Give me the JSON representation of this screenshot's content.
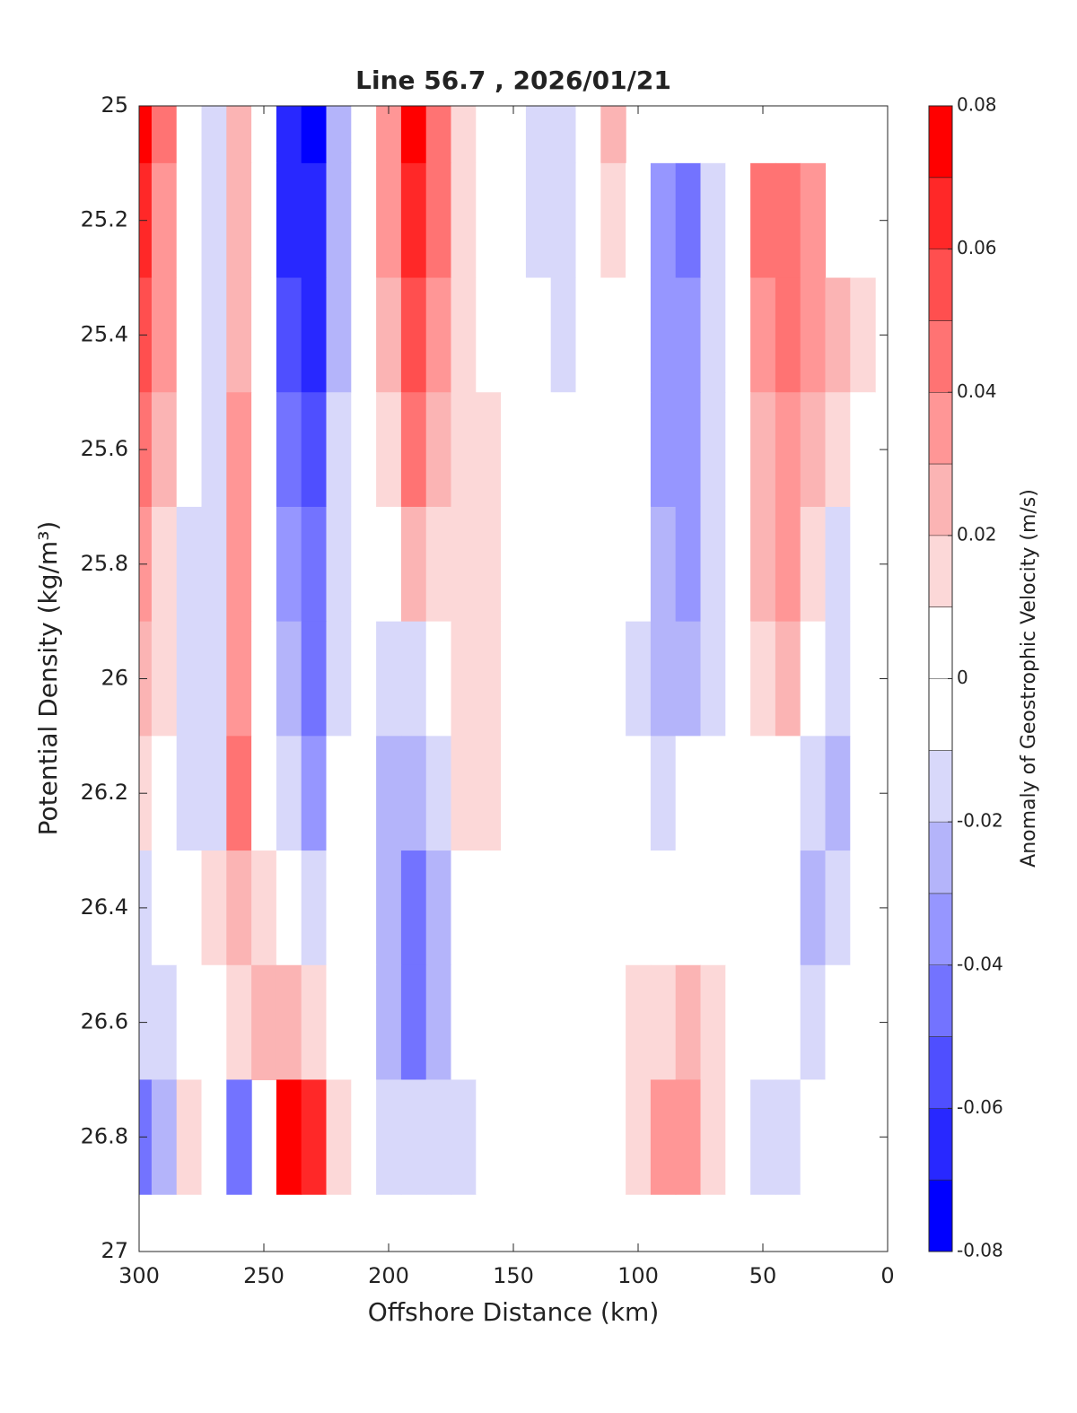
{
  "chart_data": {
    "type": "contourf",
    "title": "Line 56.7 , 2026/01/21",
    "x_label": "Offshore Distance (km)",
    "y_label": "Potential Density (kg/m³)",
    "colorbar_label": "Anomaly of Geostrophic Velocity (m/s)",
    "xlim": [
      300,
      0
    ],
    "xticks": [
      300,
      250,
      200,
      150,
      100,
      50,
      0
    ],
    "ylim": [
      25,
      27
    ],
    "yticks": [
      25,
      25.2,
      25.4,
      25.6,
      25.8,
      26,
      26.2,
      26.4,
      26.6,
      26.8,
      27
    ],
    "y_reversed": true,
    "clim": [
      -0.08,
      0.08
    ],
    "cticks": [
      -0.08,
      -0.06,
      -0.04,
      -0.02,
      0,
      0.02,
      0.04,
      0.06,
      0.08
    ],
    "colormap": [
      "#0000ff",
      "#2828ff",
      "#4f4fff",
      "#7373ff",
      "#9696ff",
      "#b4b4fa",
      "#d8d8fa",
      "#ffffff",
      "#ffffff",
      "#fcd8d8",
      "#fbb4b4",
      "#ff9696",
      "#ff7373",
      "#ff4f4f",
      "#ff2828",
      "#ff0000"
    ],
    "x": [
      300,
      290,
      280,
      270,
      260,
      250,
      240,
      230,
      220,
      210,
      200,
      190,
      180,
      170,
      160,
      150,
      140,
      130,
      120,
      110,
      100,
      90,
      80,
      70,
      60,
      50,
      40,
      30,
      20,
      10
    ],
    "y": [
      25,
      25.2,
      25.4,
      25.6,
      25.8,
      26,
      26.2,
      26.4,
      26.6,
      26.8
    ],
    "z": [
      [
        0.075,
        0.045,
        0,
        -0.015,
        0.025,
        0,
        -0.065,
        -0.075,
        -0.025,
        0,
        0.035,
        0.075,
        0.045,
        0.015,
        0,
        0,
        -0.015,
        -0.015,
        0,
        0.025,
        null,
        null,
        null,
        null,
        null,
        null,
        null,
        null,
        null,
        null
      ],
      [
        0.065,
        0.035,
        0,
        -0.015,
        0.025,
        0,
        -0.065,
        -0.065,
        -0.025,
        0,
        0.035,
        0.065,
        0.045,
        0.015,
        0,
        0,
        -0.015,
        -0.015,
        0,
        0.015,
        0,
        -0.035,
        -0.045,
        -0.015,
        0,
        0.045,
        0.045,
        0.035,
        null,
        null
      ],
      [
        0.055,
        0.035,
        0,
        -0.015,
        0.025,
        0,
        -0.055,
        -0.065,
        -0.025,
        0,
        0.025,
        0.055,
        0.035,
        0.015,
        0,
        0,
        0,
        -0.015,
        0,
        0,
        0,
        -0.035,
        -0.035,
        -0.015,
        0,
        0.035,
        0.045,
        0.035,
        0.025,
        0.015
      ],
      [
        0.045,
        0.025,
        0,
        -0.015,
        0.035,
        0,
        -0.045,
        -0.055,
        -0.015,
        0,
        0.015,
        0.045,
        0.025,
        0.015,
        0.015,
        0,
        0,
        0,
        0,
        0,
        0,
        -0.035,
        -0.035,
        -0.015,
        0,
        0.025,
        0.035,
        0.025,
        0.015,
        0
      ],
      [
        0.035,
        0.015,
        -0.015,
        -0.015,
        0.035,
        0,
        -0.035,
        -0.045,
        -0.015,
        0,
        0,
        0.025,
        0.015,
        0.015,
        0.015,
        0,
        0,
        0,
        0,
        0,
        0,
        -0.025,
        -0.035,
        -0.015,
        0,
        0.025,
        0.035,
        0.015,
        -0.015,
        0
      ],
      [
        0.025,
        0.015,
        -0.015,
        -0.015,
        0.035,
        0,
        -0.025,
        -0.045,
        -0.015,
        0,
        -0.015,
        -0.015,
        0,
        0.015,
        0.015,
        0,
        0,
        0,
        0,
        0,
        -0.015,
        -0.025,
        -0.025,
        -0.015,
        0,
        0.015,
        0.025,
        0,
        -0.015,
        0
      ],
      [
        0.015,
        0,
        -0.015,
        -0.015,
        0.045,
        0,
        -0.015,
        -0.035,
        0,
        0,
        -0.025,
        -0.025,
        -0.015,
        0.015,
        0.015,
        0,
        0,
        0,
        0,
        0,
        0,
        -0.015,
        0,
        0,
        0,
        0,
        0,
        -0.015,
        -0.025,
        0
      ],
      [
        -0.015,
        0,
        0,
        0.015,
        0.025,
        0.015,
        0,
        -0.015,
        0,
        0,
        -0.025,
        -0.045,
        -0.025,
        0,
        0,
        0,
        0,
        0,
        0,
        0,
        0,
        0,
        0,
        0,
        0,
        0,
        0,
        -0.025,
        -0.015,
        0
      ],
      [
        -0.015,
        -0.015,
        0,
        0,
        0.015,
        0.025,
        0.025,
        0.015,
        0,
        0,
        -0.025,
        -0.045,
        -0.025,
        0,
        0,
        0,
        0,
        0,
        0,
        0,
        0.015,
        0.015,
        0.025,
        0.015,
        0,
        0,
        0,
        -0.015,
        0,
        0
      ],
      [
        -0.045,
        -0.025,
        0.015,
        0,
        -0.045,
        null,
        0.075,
        0.065,
        0.015,
        0,
        -0.015,
        -0.015,
        -0.015,
        -0.015,
        0,
        0,
        0,
        0,
        0,
        0,
        0.015,
        0.035,
        0.035,
        0.015,
        0,
        -0.015,
        -0.015,
        0,
        0,
        0
      ]
    ]
  }
}
